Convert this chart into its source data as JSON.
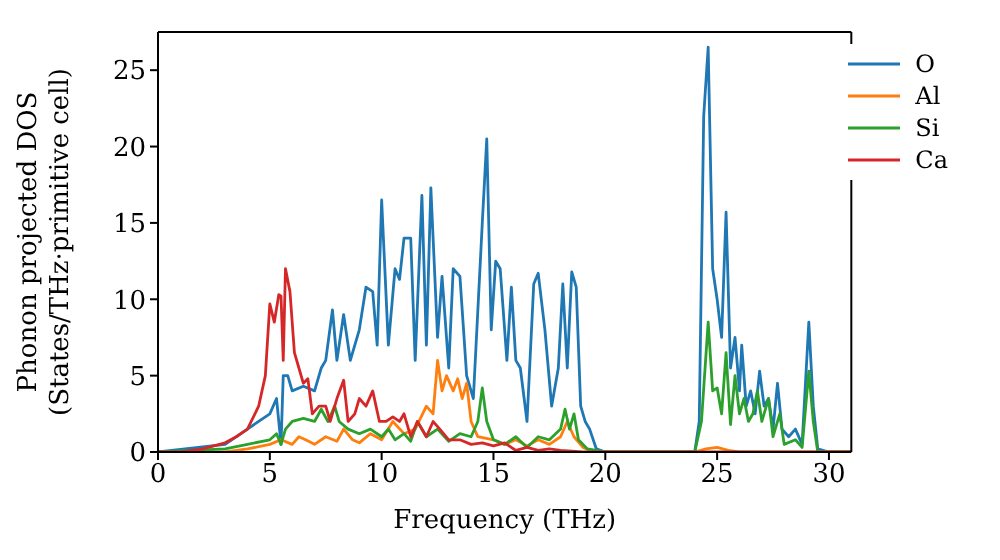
{
  "chart_data": {
    "type": "line",
    "xlabel": "Frequency (THz)",
    "ylabel": "Phonon projected DOS\n(States/THz·primitive cell)",
    "xlim": [
      0,
      31
    ],
    "xticks": [
      0,
      5,
      10,
      15,
      20,
      25,
      30
    ],
    "ylim": [
      0,
      27.5
    ],
    "yticks": [
      0,
      5,
      10,
      15,
      20,
      25
    ],
    "legend": "top right",
    "marker": "none",
    "line_style": "solid",
    "series": [
      {
        "name": "O",
        "color": "#1f77b4",
        "x": [
          0,
          3,
          4,
          4.5,
          5,
          5.3,
          5.5,
          5.6,
          5.8,
          6,
          6.5,
          7,
          7.3,
          7.5,
          7.8,
          8,
          8.3,
          8.6,
          9,
          9.3,
          9.6,
          9.8,
          10,
          10.3,
          10.6,
          10.8,
          11,
          11.3,
          11.5,
          11.8,
          12,
          12.2,
          12.5,
          12.7,
          13,
          13.2,
          13.5,
          13.8,
          14.1,
          14.5,
          14.7,
          14.9,
          15.1,
          15.3,
          15.6,
          15.8,
          16,
          16.2,
          16.5,
          16.8,
          17,
          17.3,
          17.6,
          17.9,
          18.1,
          18.3,
          18.5,
          18.7,
          18.9,
          19.1,
          19.3,
          19.6,
          20,
          24,
          24.2,
          24.4,
          24.6,
          24.8,
          25,
          25.2,
          25.4,
          25.6,
          25.8,
          26,
          26.1,
          26.3,
          26.5,
          26.7,
          26.9,
          27.1,
          27.3,
          27.5,
          27.7,
          27.9,
          28.2,
          28.5,
          28.8,
          29.1,
          29.3,
          29.5,
          30,
          31
        ],
        "values": [
          0,
          0.5,
          1.5,
          2,
          2.5,
          3.5,
          0.5,
          5,
          5,
          4,
          4.3,
          4,
          5.5,
          6,
          9.3,
          6,
          9,
          6,
          8,
          10.8,
          10.5,
          7,
          16.5,
          7,
          12,
          11.3,
          14,
          14,
          6,
          16.8,
          7,
          17.3,
          7.5,
          11.5,
          5.5,
          12,
          11.5,
          5,
          3.5,
          15,
          20.5,
          8,
          12.5,
          12,
          6,
          10.8,
          6,
          5.5,
          2,
          11,
          11.7,
          8,
          3,
          5.5,
          11,
          5.5,
          11.8,
          10.8,
          3,
          2,
          1.5,
          0.2,
          0,
          0,
          2,
          22,
          26.5,
          12,
          10,
          7.5,
          15.7,
          5.5,
          7.5,
          4,
          7,
          3,
          4,
          2.5,
          5.3,
          3,
          3.5,
          1.5,
          4.5,
          1.5,
          1,
          1.5,
          0.5,
          8.5,
          3,
          0.2,
          0,
          0
        ]
      },
      {
        "name": "Al",
        "color": "#ff7f0e",
        "x": [
          0,
          3,
          4,
          5,
          5.5,
          6,
          6.3,
          6.6,
          7,
          7.5,
          8,
          8.3,
          8.7,
          9,
          9.5,
          10,
          10.5,
          11,
          11.5,
          12,
          12.3,
          12.5,
          12.7,
          12.9,
          13.2,
          13.4,
          13.6,
          13.8,
          14,
          14.3,
          15,
          15.5,
          16,
          16.5,
          17,
          17.5,
          18,
          18.3,
          18.6,
          19,
          19.5,
          24,
          24.5,
          25,
          25.5,
          26,
          31
        ],
        "values": [
          0,
          0,
          0.2,
          0.5,
          0.8,
          0.5,
          1,
          0.8,
          0.5,
          1,
          0.7,
          1.5,
          0.8,
          0.6,
          1.2,
          0.8,
          2,
          1.2,
          1.5,
          3,
          2.5,
          6,
          4,
          5,
          4,
          4.8,
          3.5,
          4.5,
          2,
          1,
          0.8,
          0.5,
          0.8,
          0.4,
          0.8,
          0.5,
          1,
          2,
          1,
          0.3,
          0,
          0,
          0.2,
          0.3,
          0.1,
          0,
          0
        ]
      },
      {
        "name": "Si",
        "color": "#2ca02c",
        "x": [
          0,
          3,
          4,
          5,
          5.3,
          5.5,
          5.7,
          6,
          6.5,
          7,
          7.3,
          7.6,
          7.9,
          8.1,
          8.5,
          9,
          9.5,
          10,
          10.3,
          10.6,
          11,
          11.3,
          11.6,
          12,
          12.5,
          13,
          13.5,
          14,
          14.3,
          14.5,
          14.7,
          15,
          15.5,
          16,
          16.5,
          17,
          17.5,
          18,
          18.2,
          18.4,
          18.6,
          18.8,
          19.2,
          20,
          24,
          24.3,
          24.6,
          24.8,
          25,
          25.2,
          25.4,
          25.6,
          25.8,
          26,
          26.2,
          26.4,
          26.6,
          26.8,
          27,
          27.3,
          27.5,
          27.8,
          28,
          28.5,
          28.8,
          29.1,
          29.3,
          29.5,
          31
        ],
        "values": [
          0,
          0.2,
          0.5,
          0.8,
          1.2,
          0.5,
          1.5,
          2,
          2.2,
          2,
          2.8,
          2,
          3,
          2,
          1.5,
          1.2,
          1.5,
          1,
          1.5,
          0.8,
          1.2,
          0.7,
          2,
          1,
          1.5,
          0.7,
          1.2,
          1,
          2,
          4.2,
          2,
          0.8,
          0.5,
          1,
          0.3,
          1,
          0.8,
          1.5,
          2.8,
          1.5,
          2.5,
          0.8,
          0.2,
          0,
          0,
          2,
          8.5,
          4,
          4.2,
          2.5,
          6.5,
          1.8,
          5,
          2.5,
          3.5,
          2,
          2.5,
          4,
          2,
          3.5,
          1,
          2.5,
          0.5,
          0.8,
          0.3,
          5.3,
          2,
          0,
          0
        ]
      },
      {
        "name": "Ca",
        "color": "#d62728",
        "x": [
          0,
          1,
          2,
          3,
          3.5,
          4,
          4.5,
          4.8,
          5,
          5.2,
          5.4,
          5.5,
          5.6,
          5.7,
          5.9,
          6.1,
          6.3,
          6.5,
          6.7,
          6.9,
          7.2,
          7.5,
          7.7,
          8,
          8.3,
          8.5,
          8.8,
          9,
          9.3,
          9.6,
          9.9,
          10.2,
          10.5,
          10.8,
          11,
          11.3,
          11.6,
          12,
          12.3,
          12.6,
          13,
          13.5,
          14,
          14.5,
          15,
          15.5,
          16,
          16.5,
          17,
          17.5,
          18,
          19,
          31
        ],
        "values": [
          0,
          0,
          0.2,
          0.6,
          1,
          1.5,
          3,
          5,
          9.7,
          8.5,
          10.3,
          10.2,
          6,
          12,
          10.5,
          6.5,
          5.5,
          4.5,
          4.8,
          2.5,
          3,
          3,
          2,
          3.5,
          4.7,
          2,
          2.5,
          3.5,
          3,
          4,
          2,
          2,
          2.3,
          2,
          2.5,
          1,
          2,
          1,
          2,
          1.5,
          0.8,
          0.8,
          0.5,
          0.6,
          0.4,
          0.6,
          0.1,
          0.3,
          0.1,
          0.2,
          0.1,
          0,
          0
        ]
      }
    ]
  }
}
